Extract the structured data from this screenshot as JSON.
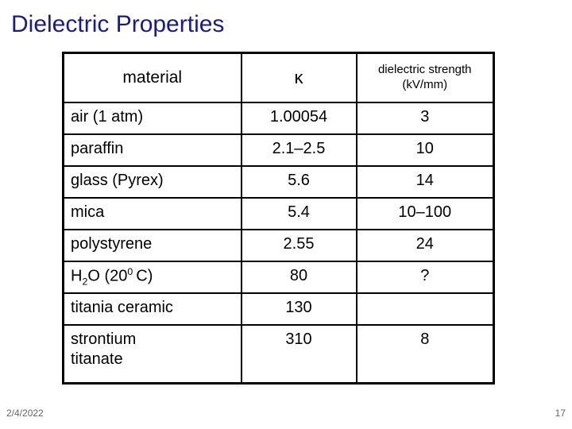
{
  "slide": {
    "title": "Dielectric Properties",
    "footer": {
      "date": "2/4/2022",
      "page": "17"
    }
  },
  "table": {
    "headers": {
      "material": "material",
      "kappa": "κ",
      "strength_line1": "dielectric strength",
      "strength_line2": "(kV/mm)"
    },
    "rows": [
      {
        "material": "air (1 atm)",
        "kappa": "1.00054",
        "strength": "3"
      },
      {
        "material": "paraffin",
        "kappa": "2.1–2.5",
        "strength": "10"
      },
      {
        "material": "glass (Pyrex)",
        "kappa": "5.6",
        "strength": "14"
      },
      {
        "material": "mica",
        "kappa": "5.4",
        "strength": "10–100"
      },
      {
        "material": "polystyrene",
        "kappa": "2.55",
        "strength": "24"
      },
      {
        "material_parts": [
          [
            "t",
            "H"
          ],
          [
            "sub",
            "2"
          ],
          [
            "t",
            "O (20"
          ],
          [
            "sup",
            "0"
          ],
          [
            "t",
            " C)"
          ]
        ],
        "kappa": "80",
        "strength": "?"
      },
      {
        "material": "titania ceramic",
        "kappa": "130",
        "strength": ""
      },
      {
        "material": "strontium\ntitanate",
        "kappa": "310",
        "strength": "8"
      }
    ]
  },
  "colors": {
    "title": "#1b1b86",
    "border": "#000000",
    "body_text": "#000000",
    "footer_text": "#666666",
    "background": "#ffffff"
  }
}
